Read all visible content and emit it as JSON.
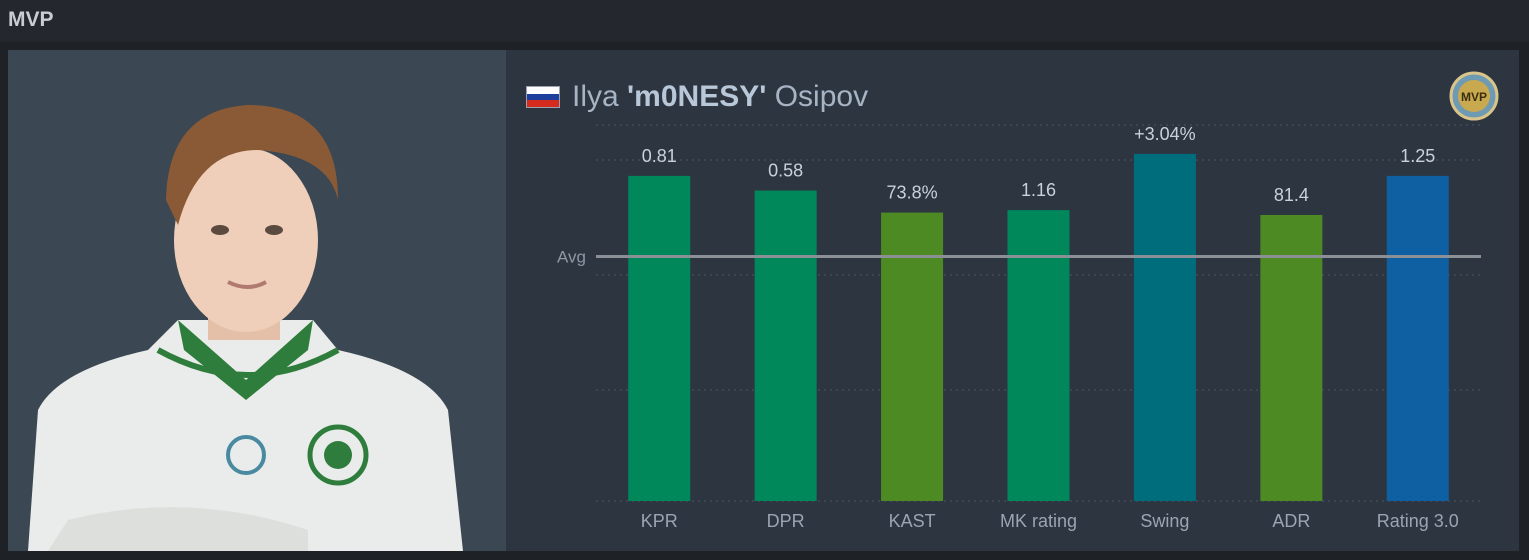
{
  "header": {
    "title": "MVP"
  },
  "player": {
    "first_name": "Ilya",
    "nickname": "'m0NESY'",
    "last_name": "Osipov",
    "country_flag": "russia-flag",
    "flag_colors": [
      "#ffffff",
      "#1c3f9e",
      "#d52b1e"
    ],
    "badge_text": "MVP"
  },
  "colors": {
    "kpr_dpr_mk": "#00875a",
    "kast_adr": "#4e8a23",
    "swing": "#006d7d",
    "rating": "#0f5fa3",
    "avg_line": "#8b9096"
  },
  "chart_data": {
    "type": "bar",
    "title": "",
    "avg_label": "Avg",
    "categories": [
      "KPR",
      "DPR",
      "KAST",
      "MK rating",
      "Swing",
      "ADR",
      "Rating 3.0"
    ],
    "value_labels": [
      "0.81",
      "0.58",
      "73.8%",
      "1.16",
      "+3.04%",
      "81.4",
      "1.25"
    ],
    "relative_to_avg": [
      1.33,
      1.27,
      1.18,
      1.19,
      1.42,
      1.17,
      1.33
    ],
    "bar_colors": [
      "#00875a",
      "#00875a",
      "#4e8a23",
      "#00875a",
      "#006d7d",
      "#4e8a23",
      "#0f5fa3"
    ],
    "avg_level": 1.0,
    "ylim": [
      0,
      1.8
    ],
    "grid": true,
    "legend": "none"
  }
}
